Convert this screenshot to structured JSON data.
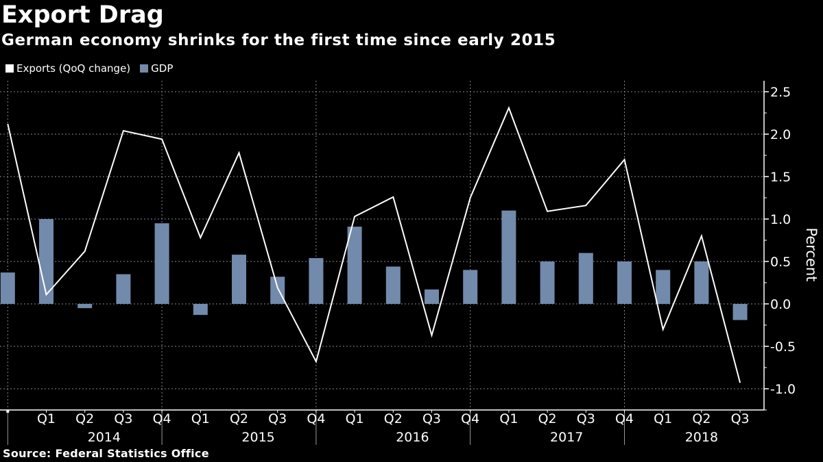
{
  "header": {
    "title": "Export Drag",
    "subtitle": "German economy shrinks for the first time since early 2015"
  },
  "legend": [
    {
      "label": "Exports (QoQ change)",
      "color": "#ffffff"
    },
    {
      "label": "GDP",
      "color": "#728aab"
    }
  ],
  "footer": {
    "source": "Source: Federal Statistics Office"
  },
  "chart_data": {
    "type": "bar",
    "title": "Export Drag",
    "subtitle": "German economy shrinks for the first time since early 2015",
    "xlabel": "",
    "ylabel": "Percent",
    "ylim": [
      -1.25,
      2.6
    ],
    "yticks": [
      2.5,
      2.0,
      1.5,
      1.0,
      0.5,
      0.0,
      -0.5,
      -1.0
    ],
    "ytick_labels": [
      "2.5",
      "2.0",
      "1.5",
      "1.0",
      "0.5",
      "0.0",
      "-0.5",
      "-1.0"
    ],
    "grid": true,
    "legend_position": "top-left",
    "y_axis_side": "right",
    "categories": [
      "2013 Q4",
      "2014 Q1",
      "2014 Q2",
      "2014 Q3",
      "2014 Q4",
      "2015 Q1",
      "2015 Q2",
      "2015 Q3",
      "2015 Q4",
      "2016 Q1",
      "2016 Q2",
      "2016 Q3",
      "2016 Q4",
      "2017 Q1",
      "2017 Q2",
      "2017 Q3",
      "2017 Q4",
      "2018 Q1",
      "2018 Q2",
      "2018 Q3"
    ],
    "quarter_labels": [
      "",
      "Q1",
      "Q2",
      "Q3",
      "Q4",
      "Q1",
      "Q2",
      "Q3",
      "Q4",
      "Q1",
      "Q2",
      "Q3",
      "Q4",
      "Q1",
      "Q2",
      "Q3",
      "Q4",
      "Q1",
      "Q2",
      "Q3"
    ],
    "year_labels": [
      {
        "label": "2014",
        "center_index": 2.5
      },
      {
        "label": "2015",
        "center_index": 6.5
      },
      {
        "label": "2016",
        "center_index": 10.5
      },
      {
        "label": "2017",
        "center_index": 14.5
      },
      {
        "label": "2018",
        "center_index": 18
      }
    ],
    "year_separator_indices": [
      0,
      4,
      8,
      12,
      16
    ],
    "series": [
      {
        "name": "Exports (QoQ change)",
        "type": "line",
        "color": "#ffffff",
        "values": [
          2.12,
          0.11,
          0.62,
          2.04,
          1.94,
          0.78,
          1.78,
          0.19,
          -0.68,
          1.03,
          1.26,
          -0.37,
          1.25,
          2.31,
          1.09,
          1.16,
          1.7,
          -0.3,
          0.8,
          -0.93
        ]
      },
      {
        "name": "GDP",
        "type": "bar",
        "color": "#728aab",
        "values": [
          0.37,
          1.0,
          -0.05,
          0.35,
          0.95,
          -0.13,
          0.58,
          0.32,
          0.54,
          0.91,
          0.44,
          0.17,
          0.4,
          1.1,
          0.5,
          0.6,
          0.5,
          0.4,
          0.5,
          -0.19
        ]
      }
    ]
  }
}
